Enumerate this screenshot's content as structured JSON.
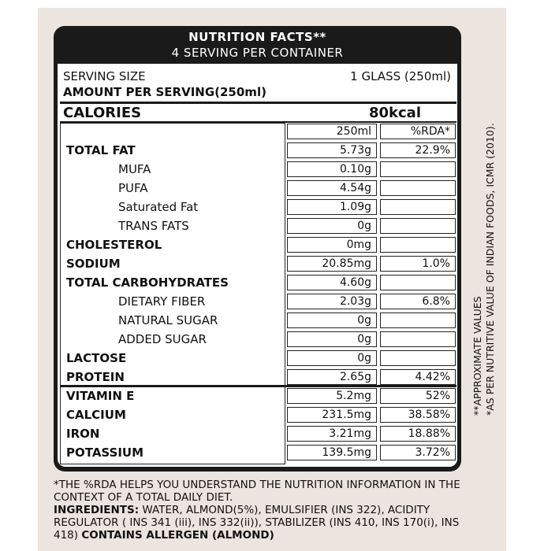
{
  "header": {
    "title": "NUTRITION FACTS**",
    "subtitle": "4 SERVING PER CONTAINER"
  },
  "serving": {
    "label": "SERVING SIZE",
    "value": "1 GLASS (250ml)"
  },
  "amount_per_serving": "AMOUNT PER SERVING(250ml)",
  "calories": {
    "label": "CALORIES",
    "value": "80kcal"
  },
  "columns": [
    "250ml",
    "%RDA*"
  ],
  "nutrients": [
    {
      "label": "TOTAL FAT",
      "amount": "5.73g",
      "rda": "22.9%",
      "subitems": [
        {
          "label": "MUFA",
          "amount": "0.10g"
        },
        {
          "label": "PUFA",
          "amount": "4.54g"
        },
        {
          "label": "Saturated Fat",
          "amount": "1.09g"
        },
        {
          "label": "TRANS FATS",
          "amount": "0g"
        }
      ]
    },
    {
      "label": "CHOLESTEROL",
      "amount": "0mg"
    },
    {
      "label": "SODIUM",
      "amount": "20.85mg",
      "rda": "1.0%"
    },
    {
      "label": "TOTAL CARBOHYDRATES",
      "amount": "4.60g",
      "subitems": [
        {
          "label": "DIETARY FIBER",
          "amount": "2.03g",
          "rda": "6.8%"
        },
        {
          "label": "NATURAL SUGAR",
          "amount": "0g"
        },
        {
          "label": "ADDED SUGAR",
          "amount": "0g"
        }
      ]
    },
    {
      "label": "LACTOSE",
      "amount": "0g"
    },
    {
      "label": "PROTEIN",
      "amount": "2.65g",
      "rda": "4.42%"
    }
  ],
  "vitamins_minerals": [
    {
      "label": "VITAMIN E",
      "amount": "5.2mg",
      "rda": "52%"
    },
    {
      "label": "CALCIUM",
      "amount": "231.5mg",
      "rda": "38.58%"
    },
    {
      "label": "IRON",
      "amount": "3.21mg",
      "rda": "18.88%"
    },
    {
      "label": "POTASSIUM",
      "amount": "139.5mg",
      "rda": "3.72%"
    }
  ],
  "side_notes": [
    "**APPROXIMATE VALUES",
    "*AS PER NUTRITIVE VALUE OF INDIAN FOODS, ICMR (2010)."
  ],
  "footnote": "*THE %RDA HELPS YOU UNDERSTAND THE NUTRITION INFORMATION IN THE CONTEXT OF A TOTAL DAILY DIET.",
  "ingredients": {
    "label": "INGREDIENTS:",
    "text": "WATER, ALMOND(5%), EMULSIFIER (INS 322), ACIDITY REGULATOR ( INS 341 (iii), INS 332(ii)), STABILIZER (INS 410, INS 170(i), INS 418)",
    "allergen": "CONTAINS ALLERGEN (ALMOND)"
  }
}
